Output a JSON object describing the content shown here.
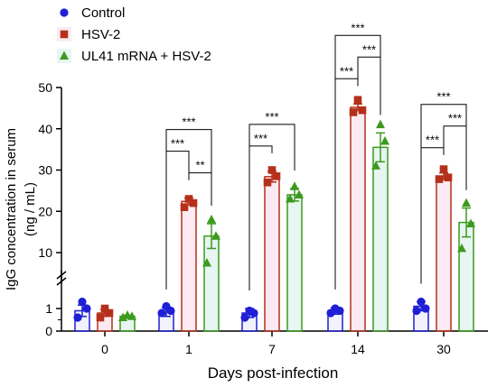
{
  "chart_data": {
    "type": "bar",
    "xlabel": "Days post-infection",
    "ylabel_line1": "IgG concentration in serum",
    "ylabel_line2": "(ng / mL)",
    "categories": [
      "0",
      "1",
      "7",
      "14",
      "30"
    ],
    "axis_break": {
      "lower_range": [
        0,
        2
      ],
      "upper_range": [
        5,
        50
      ]
    },
    "yticks_lower": [
      "0",
      "1"
    ],
    "yticks_upper": [
      "10",
      "20",
      "30",
      "40",
      "50"
    ],
    "legend_position": "top-left",
    "series": [
      {
        "name": "Control",
        "color": "#1f1fd6",
        "marker": "circle",
        "means": [
          0.9,
          0.85,
          0.8,
          0.9,
          1.1
        ],
        "sem": [
          0.25,
          0.2,
          0.2,
          0.15,
          0.2
        ],
        "points": [
          [
            0.6,
            1.0,
            1.3
          ],
          [
            0.8,
            0.9,
            1.1
          ],
          [
            0.6,
            0.8,
            0.9
          ],
          [
            0.8,
            0.9,
            1.0
          ],
          [
            0.9,
            1.0,
            1.3
          ]
        ]
      },
      {
        "name": "HSV-2",
        "color": "#b5301a",
        "marker": "square",
        "means": [
          0.8,
          22.4,
          28.4,
          45.2,
          28.5
        ],
        "sem": [
          0.15,
          0.8,
          1.3,
          0.8,
          0.8
        ],
        "points": [
          [
            0.6,
            0.8,
            1.0
          ],
          [
            21.0,
            22.0,
            23.0
          ],
          [
            27.0,
            28.5,
            30.0
          ],
          [
            44.0,
            44.5,
            47.0
          ],
          [
            27.8,
            28.2,
            30.2
          ]
        ]
      },
      {
        "name": "UL41 mRNA + HSV-2",
        "color": "#3c9a1e",
        "marker": "triangle",
        "means": [
          0.65,
          14.0,
          24.0,
          35.5,
          17.3
        ],
        "sem": [
          0.05,
          3.0,
          1.5,
          3.5,
          3.5
        ],
        "points": [
          [
            0.6,
            0.65,
            0.7
          ],
          [
            7.5,
            14.0,
            18.0
          ],
          [
            23.0,
            24.0,
            26.0
          ],
          [
            31.0,
            37.0,
            41.0
          ],
          [
            11.0,
            17.0,
            22.0
          ]
        ]
      }
    ],
    "annotations": [
      {
        "group": 1,
        "from": 1,
        "to": 2,
        "label": "**"
      },
      {
        "group": 1,
        "from": 0,
        "to": 1,
        "label": "***"
      },
      {
        "group": 1,
        "from": 0,
        "to": 2,
        "label": "***"
      },
      {
        "group": 2,
        "from": 0,
        "to": 1,
        "label": "***"
      },
      {
        "group": 2,
        "from": 0,
        "to": 2,
        "label": "***"
      },
      {
        "group": 3,
        "from": 0,
        "to": 1,
        "label": "***"
      },
      {
        "group": 3,
        "from": 1,
        "to": 2,
        "label": "***"
      },
      {
        "group": 3,
        "from": 0,
        "to": 2,
        "label": "***"
      },
      {
        "group": 4,
        "from": 0,
        "to": 1,
        "label": "***"
      },
      {
        "group": 4,
        "from": 1,
        "to": 2,
        "label": "***"
      },
      {
        "group": 4,
        "from": 0,
        "to": 2,
        "label": "***"
      }
    ]
  }
}
